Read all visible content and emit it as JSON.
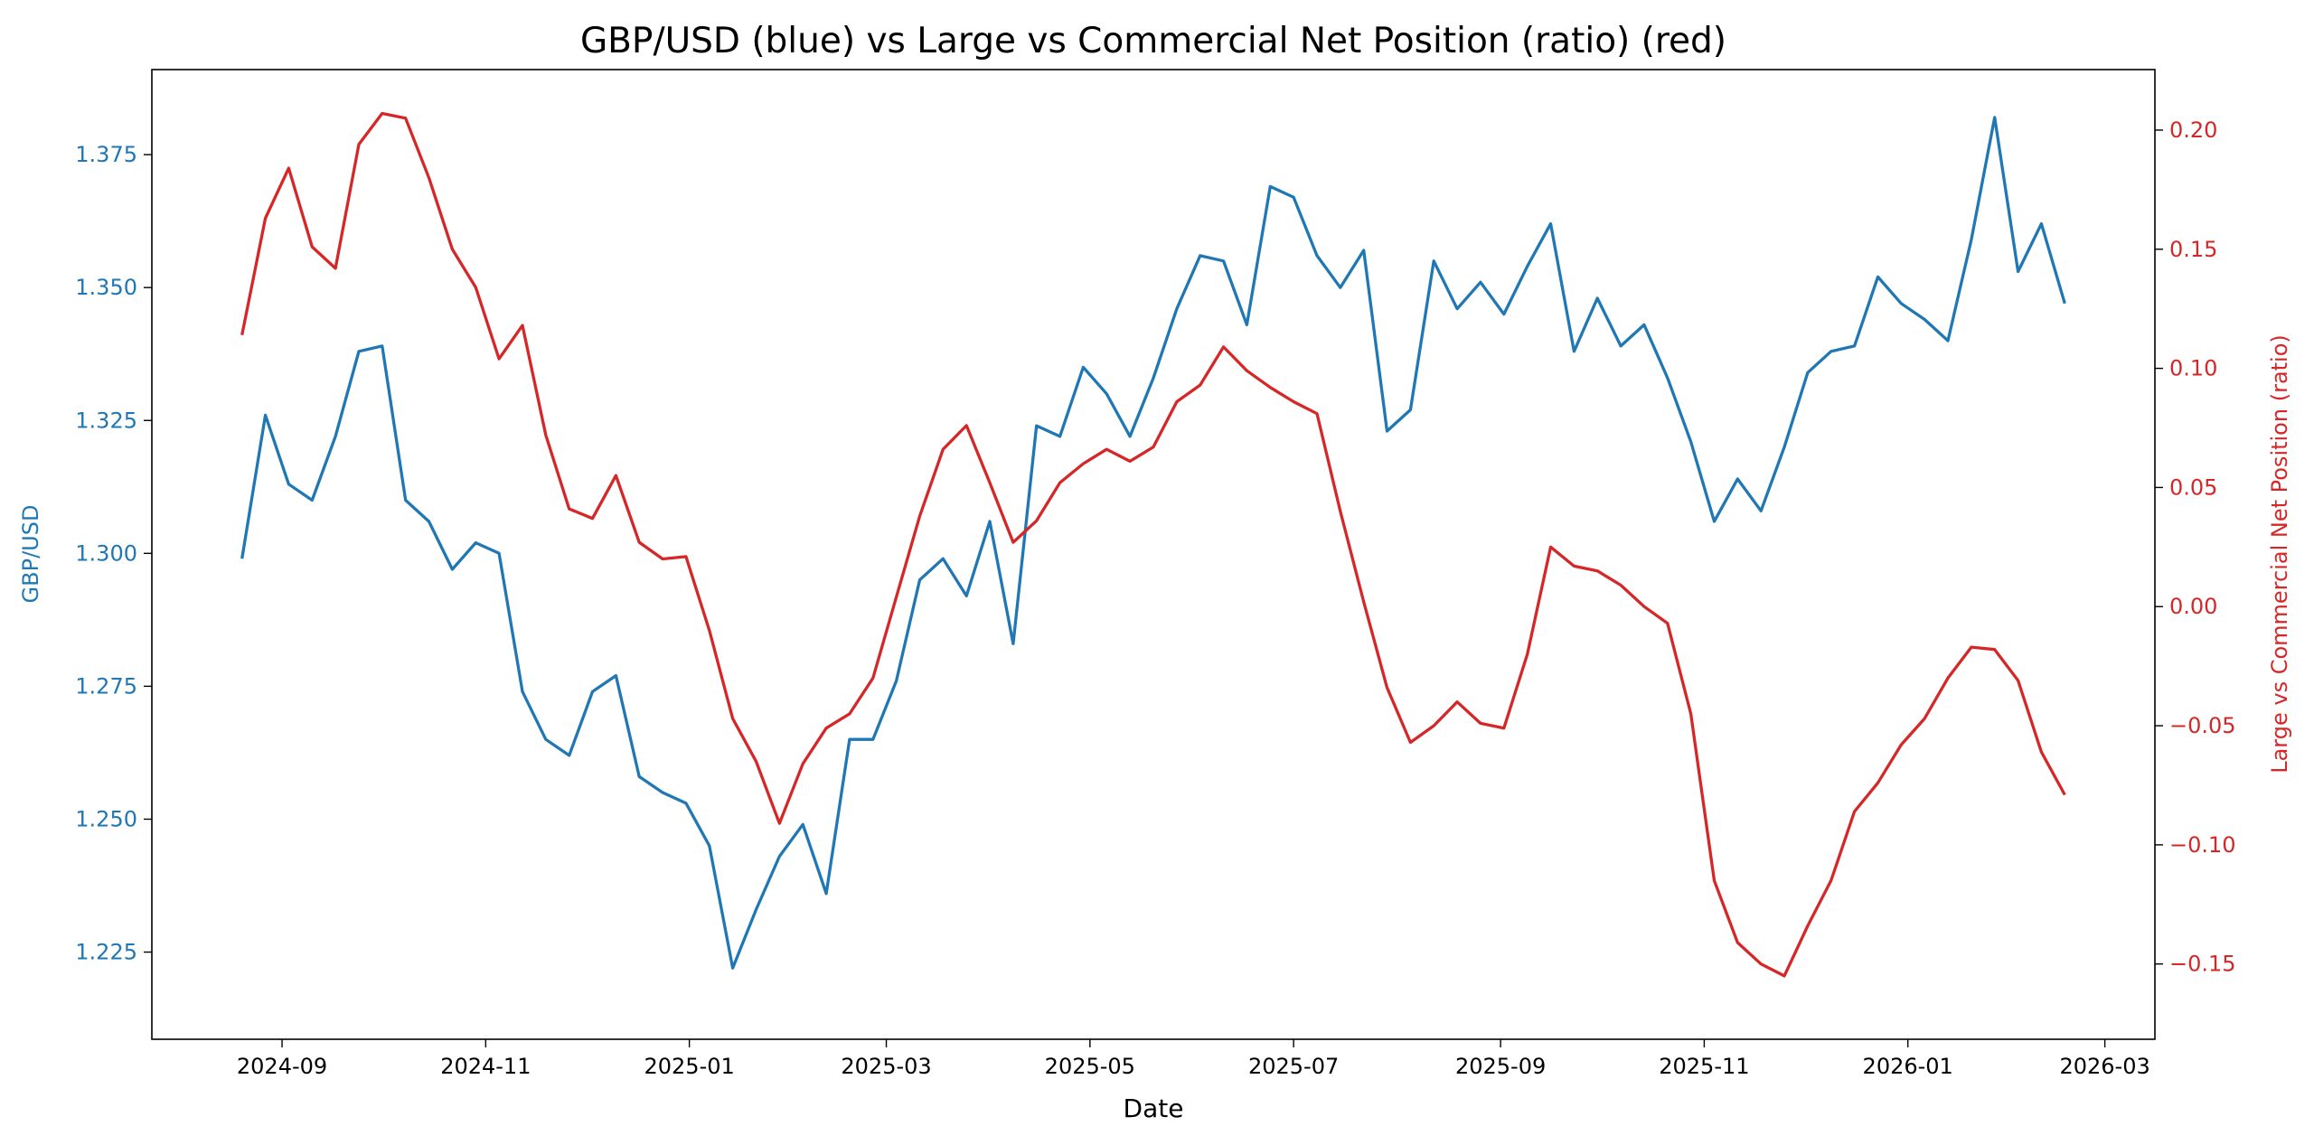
{
  "chart_data": {
    "type": "line",
    "title": "GBP/USD (blue) vs Large vs Commercial Net Position (ratio) (red)",
    "xlabel": "Date",
    "ylabel_left": "GBP/USD",
    "ylabel_right": "Large vs Commercial Net Position (ratio)",
    "xlim": [
      "2024-07-24",
      "2026-03-16"
    ],
    "ylim_left": [
      1.2086,
      1.391
    ],
    "ylim_right": [
      -0.1816,
      0.2254
    ],
    "grid": false,
    "legend": "none",
    "xticks": [
      "2024-09",
      "2024-11",
      "2025-01",
      "2025-03",
      "2025-05",
      "2025-07",
      "2025-09",
      "2025-11",
      "2026-01",
      "2026-03"
    ],
    "yticks_left": [
      "1.225",
      "1.250",
      "1.275",
      "1.300",
      "1.325",
      "1.350",
      "1.375"
    ],
    "yticks_right": [
      "−0.15",
      "−0.10",
      "−0.05",
      "0.00",
      "0.05",
      "0.10",
      "0.15",
      "0.20"
    ],
    "yticks_right_values": [
      -0.15,
      -0.1,
      -0.05,
      0.0,
      0.05,
      0.1,
      0.15,
      0.2
    ],
    "x": [
      "2024-08-20",
      "2024-08-27",
      "2024-09-03",
      "2024-09-10",
      "2024-09-17",
      "2024-09-24",
      "2024-10-01",
      "2024-10-08",
      "2024-10-15",
      "2024-10-22",
      "2024-10-29",
      "2024-11-05",
      "2024-11-12",
      "2024-11-19",
      "2024-11-26",
      "2024-12-03",
      "2024-12-10",
      "2024-12-17",
      "2024-12-24",
      "2024-12-31",
      "2025-01-07",
      "2025-01-14",
      "2025-01-21",
      "2025-01-28",
      "2025-02-04",
      "2025-02-11",
      "2025-02-18",
      "2025-02-25",
      "2025-03-04",
      "2025-03-11",
      "2025-03-18",
      "2025-03-25",
      "2025-04-01",
      "2025-04-08",
      "2025-04-15",
      "2025-04-22",
      "2025-04-29",
      "2025-05-06",
      "2025-05-13",
      "2025-05-20",
      "2025-05-27",
      "2025-06-03",
      "2025-06-10",
      "2025-06-17",
      "2025-06-24",
      "2025-07-01",
      "2025-07-08",
      "2025-07-15",
      "2025-07-22",
      "2025-07-29",
      "2025-08-05",
      "2025-08-12",
      "2025-08-19",
      "2025-08-26",
      "2025-09-02",
      "2025-09-09",
      "2025-09-16",
      "2025-09-23",
      "2025-09-30",
      "2025-10-07",
      "2025-10-14",
      "2025-10-21",
      "2025-10-28",
      "2025-11-04",
      "2025-11-11",
      "2025-11-18",
      "2025-11-25",
      "2025-12-02",
      "2025-12-09",
      "2025-12-16",
      "2025-12-23",
      "2025-12-30",
      "2026-01-06",
      "2026-01-13",
      "2026-01-20",
      "2026-01-27",
      "2026-02-03",
      "2026-02-10",
      "2026-02-17"
    ],
    "series": [
      {
        "axis": "left",
        "color": "#1f77b4",
        "values": [
          1.299,
          1.326,
          1.313,
          1.31,
          1.322,
          1.338,
          1.339,
          1.31,
          1.306,
          1.297,
          1.302,
          1.3,
          1.274,
          1.265,
          1.262,
          1.274,
          1.277,
          1.258,
          1.255,
          1.253,
          1.245,
          1.222,
          1.233,
          1.243,
          1.249,
          1.236,
          1.265,
          1.265,
          1.276,
          1.295,
          1.299,
          1.292,
          1.306,
          1.283,
          1.324,
          1.322,
          1.335,
          1.33,
          1.322,
          1.333,
          1.346,
          1.356,
          1.355,
          1.343,
          1.369,
          1.367,
          1.356,
          1.35,
          1.357,
          1.323,
          1.327,
          1.355,
          1.346,
          1.351,
          1.345,
          1.354,
          1.362,
          1.338,
          1.348,
          1.339,
          1.343,
          1.333,
          1.321,
          1.306,
          1.314,
          1.308,
          1.32,
          1.334,
          1.338,
          1.339,
          1.352,
          1.347,
          1.344,
          1.34,
          1.359,
          1.382,
          1.353,
          1.362,
          1.347
        ]
      },
      {
        "axis": "right",
        "color": "#d62728",
        "values": [
          0.114,
          0.163,
          0.184,
          0.151,
          0.142,
          0.194,
          0.207,
          0.205,
          0.18,
          0.15,
          0.134,
          0.104,
          0.118,
          0.072,
          0.041,
          0.037,
          0.055,
          0.027,
          0.02,
          0.021,
          -0.01,
          -0.047,
          -0.065,
          -0.091,
          -0.066,
          -0.051,
          -0.045,
          -0.03,
          0.004,
          0.038,
          0.066,
          0.076,
          0.052,
          0.027,
          0.036,
          0.052,
          0.06,
          0.066,
          0.061,
          0.067,
          0.086,
          0.093,
          0.109,
          0.099,
          0.092,
          0.086,
          0.081,
          0.04,
          0.002,
          -0.034,
          -0.057,
          -0.05,
          -0.04,
          -0.049,
          -0.051,
          -0.02,
          0.025,
          0.017,
          0.015,
          0.009,
          0.0,
          -0.007,
          -0.045,
          -0.115,
          -0.141,
          -0.15,
          -0.155,
          -0.134,
          -0.115,
          -0.086,
          -0.074,
          -0.058,
          -0.047,
          -0.03,
          -0.017,
          -0.018,
          -0.031,
          -0.061,
          -0.079
        ]
      }
    ]
  }
}
